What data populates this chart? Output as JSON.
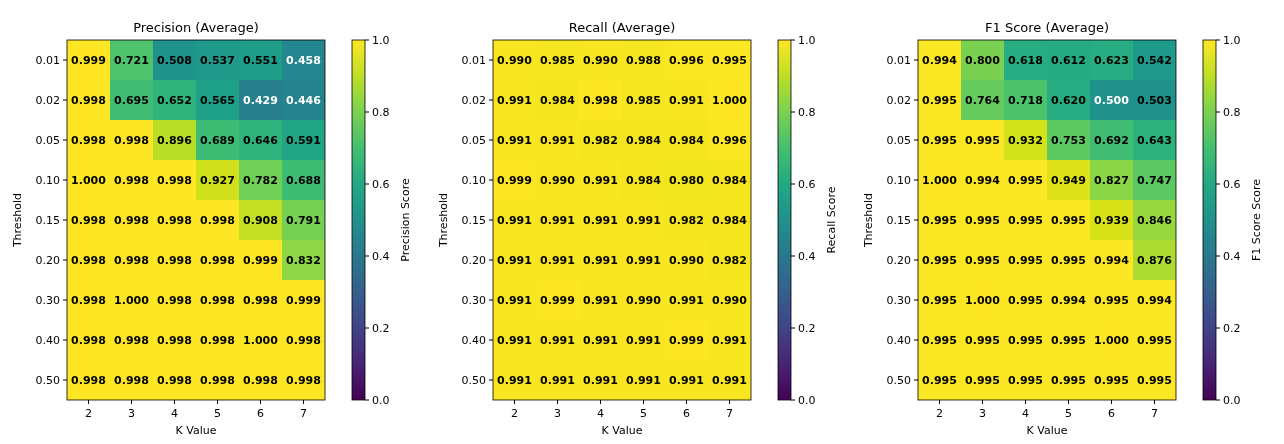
{
  "chart_data": [
    {
      "type": "heatmap",
      "title": "Precision (Average)",
      "xlabel": "K Value",
      "ylabel": "Threshold",
      "clabel": "Precision Score",
      "categories": [
        "2",
        "3",
        "4",
        "5",
        "6",
        "7"
      ],
      "y_categories": [
        "0.01",
        "0.02",
        "0.05",
        "0.10",
        "0.15",
        "0.20",
        "0.30",
        "0.40",
        "0.50"
      ],
      "cells": [
        [
          0.999,
          0.721,
          0.508,
          0.537,
          0.551,
          0.458
        ],
        [
          0.998,
          0.695,
          0.652,
          0.565,
          0.429,
          0.446
        ],
        [
          0.998,
          0.998,
          0.896,
          0.689,
          0.646,
          0.591
        ],
        [
          1.0,
          0.998,
          0.998,
          0.927,
          0.782,
          0.688
        ],
        [
          0.998,
          0.998,
          0.998,
          0.998,
          0.908,
          0.791
        ],
        [
          0.998,
          0.998,
          0.998,
          0.998,
          0.999,
          0.832
        ],
        [
          0.998,
          1.0,
          0.998,
          0.998,
          0.998,
          0.999
        ],
        [
          0.998,
          0.998,
          0.998,
          0.998,
          1.0,
          0.998
        ],
        [
          0.998,
          0.998,
          0.998,
          0.998,
          0.998,
          0.998
        ]
      ],
      "cell_labels": [
        [
          "0.999",
          "0.721",
          "0.508",
          "0.537",
          "0.551",
          "0.458"
        ],
        [
          "0.998",
          "0.695",
          "0.652",
          "0.565",
          "0.429",
          "0.446"
        ],
        [
          "0.998",
          "0.998",
          "0.896",
          "0.689",
          "0.646",
          "0.591"
        ],
        [
          "1.000",
          "0.998",
          "0.998",
          "0.927",
          "0.782",
          "0.688"
        ],
        [
          "0.998",
          "0.998",
          "0.998",
          "0.998",
          "0.908",
          "0.791"
        ],
        [
          "0.998",
          "0.998",
          "0.998",
          "0.998",
          "0.999",
          "0.832"
        ],
        [
          "0.998",
          "1.000",
          "0.998",
          "0.998",
          "0.998",
          "0.999"
        ],
        [
          "0.998",
          "0.998",
          "0.998",
          "0.998",
          "1.000",
          "0.998"
        ],
        [
          "0.998",
          "0.998",
          "0.998",
          "0.998",
          "0.998",
          "0.998"
        ]
      ],
      "clim": [
        0,
        1
      ],
      "cticks": [
        {
          "value": 0,
          "label": "0.0"
        },
        {
          "value": 0.2,
          "label": "0.2"
        },
        {
          "value": 0.4,
          "label": "0.4"
        },
        {
          "value": 0.6,
          "label": "0.6"
        },
        {
          "value": 0.8,
          "label": "0.8"
        },
        {
          "value": 1,
          "label": "1.0"
        }
      ]
    },
    {
      "type": "heatmap",
      "title": "Recall (Average)",
      "xlabel": "K Value",
      "ylabel": "Threshold",
      "clabel": "Recall Score",
      "categories": [
        "2",
        "3",
        "4",
        "5",
        "6",
        "7"
      ],
      "y_categories": [
        "0.01",
        "0.02",
        "0.05",
        "0.10",
        "0.15",
        "0.20",
        "0.30",
        "0.40",
        "0.50"
      ],
      "cells": [
        [
          0.99,
          0.985,
          0.99,
          0.988,
          0.996,
          0.995
        ],
        [
          0.991,
          0.984,
          0.998,
          0.985,
          0.991,
          1.0
        ],
        [
          0.991,
          0.991,
          0.982,
          0.984,
          0.984,
          0.996
        ],
        [
          0.999,
          0.99,
          0.991,
          0.984,
          0.98,
          0.984
        ],
        [
          0.991,
          0.991,
          0.991,
          0.991,
          0.982,
          0.984
        ],
        [
          0.991,
          0.991,
          0.991,
          0.991,
          0.99,
          0.982
        ],
        [
          0.991,
          0.999,
          0.991,
          0.99,
          0.991,
          0.99
        ],
        [
          0.991,
          0.991,
          0.991,
          0.991,
          0.999,
          0.991
        ],
        [
          0.991,
          0.991,
          0.991,
          0.991,
          0.991,
          0.991
        ]
      ],
      "cell_labels": [
        [
          "0.990",
          "0.985",
          "0.990",
          "0.988",
          "0.996",
          "0.995"
        ],
        [
          "0.991",
          "0.984",
          "0.998",
          "0.985",
          "0.991",
          "1.000"
        ],
        [
          "0.991",
          "0.991",
          "0.982",
          "0.984",
          "0.984",
          "0.996"
        ],
        [
          "0.999",
          "0.990",
          "0.991",
          "0.984",
          "0.980",
          "0.984"
        ],
        [
          "0.991",
          "0.991",
          "0.991",
          "0.991",
          "0.982",
          "0.984"
        ],
        [
          "0.991",
          "0.991",
          "0.991",
          "0.991",
          "0.990",
          "0.982"
        ],
        [
          "0.991",
          "0.999",
          "0.991",
          "0.990",
          "0.991",
          "0.990"
        ],
        [
          "0.991",
          "0.991",
          "0.991",
          "0.991",
          "0.999",
          "0.991"
        ],
        [
          "0.991",
          "0.991",
          "0.991",
          "0.991",
          "0.991",
          "0.991"
        ]
      ],
      "clim": [
        0,
        1
      ],
      "cticks": [
        {
          "value": 0,
          "label": "0.0"
        },
        {
          "value": 0.2,
          "label": "0.2"
        },
        {
          "value": 0.4,
          "label": "0.4"
        },
        {
          "value": 0.6,
          "label": "0.6"
        },
        {
          "value": 0.8,
          "label": "0.8"
        },
        {
          "value": 1,
          "label": "1.0"
        }
      ]
    },
    {
      "type": "heatmap",
      "title": "F1 Score (Average)",
      "xlabel": "K Value",
      "ylabel": "Threshold",
      "clabel": "F1 Score Score",
      "categories": [
        "2",
        "3",
        "4",
        "5",
        "6",
        "7"
      ],
      "y_categories": [
        "0.01",
        "0.02",
        "0.05",
        "0.10",
        "0.15",
        "0.20",
        "0.30",
        "0.40",
        "0.50"
      ],
      "cells": [
        [
          0.994,
          0.8,
          0.618,
          0.612,
          0.623,
          0.542
        ],
        [
          0.995,
          0.764,
          0.718,
          0.62,
          0.5,
          0.503
        ],
        [
          0.995,
          0.995,
          0.932,
          0.753,
          0.692,
          0.643
        ],
        [
          1.0,
          0.994,
          0.995,
          0.949,
          0.827,
          0.747
        ],
        [
          0.995,
          0.995,
          0.995,
          0.995,
          0.939,
          0.846
        ],
        [
          0.995,
          0.995,
          0.995,
          0.995,
          0.994,
          0.876
        ],
        [
          0.995,
          1.0,
          0.995,
          0.994,
          0.995,
          0.994
        ],
        [
          0.995,
          0.995,
          0.995,
          0.995,
          1.0,
          0.995
        ],
        [
          0.995,
          0.995,
          0.995,
          0.995,
          0.995,
          0.995
        ]
      ],
      "cell_labels": [
        [
          "0.994",
          "0.800",
          "0.618",
          "0.612",
          "0.623",
          "0.542"
        ],
        [
          "0.995",
          "0.764",
          "0.718",
          "0.620",
          "0.500",
          "0.503"
        ],
        [
          "0.995",
          "0.995",
          "0.932",
          "0.753",
          "0.692",
          "0.643"
        ],
        [
          "1.000",
          "0.994",
          "0.995",
          "0.949",
          "0.827",
          "0.747"
        ],
        [
          "0.995",
          "0.995",
          "0.995",
          "0.995",
          "0.939",
          "0.846"
        ],
        [
          "0.995",
          "0.995",
          "0.995",
          "0.995",
          "0.994",
          "0.876"
        ],
        [
          "0.995",
          "1.000",
          "0.995",
          "0.994",
          "0.995",
          "0.994"
        ],
        [
          "0.995",
          "0.995",
          "0.995",
          "0.995",
          "1.000",
          "0.995"
        ],
        [
          "0.995",
          "0.995",
          "0.995",
          "0.995",
          "0.995",
          "0.995"
        ]
      ],
      "clim": [
        0,
        1
      ],
      "cticks": [
        {
          "value": 0,
          "label": "0.0"
        },
        {
          "value": 0.2,
          "label": "0.2"
        },
        {
          "value": 0.4,
          "label": "0.4"
        },
        {
          "value": 0.6,
          "label": "0.6"
        },
        {
          "value": 0.8,
          "label": "0.8"
        },
        {
          "value": 1,
          "label": "1.0"
        }
      ]
    }
  ]
}
